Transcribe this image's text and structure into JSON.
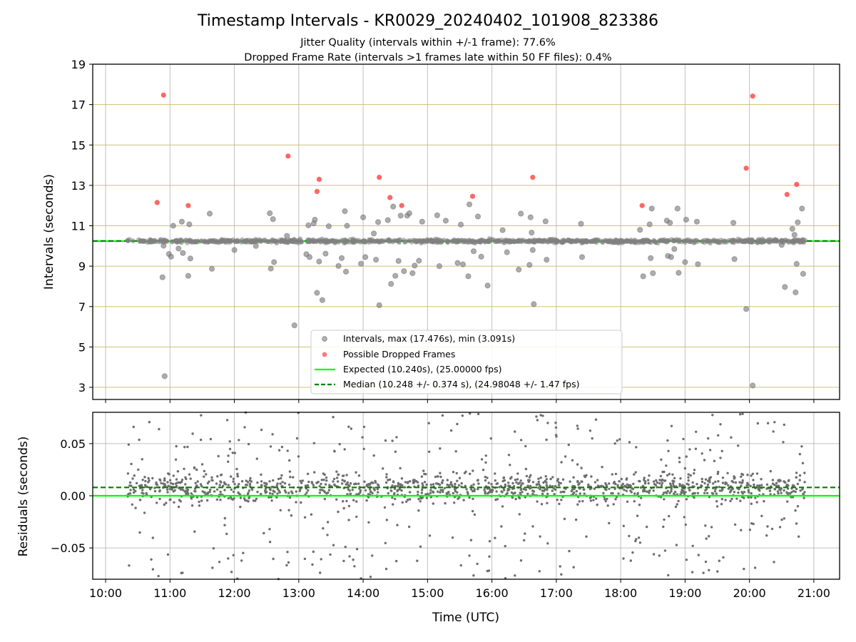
{
  "chart_data": [
    {
      "type": "scatter",
      "title": "Timestamp Intervals - KR0029_20240402_101908_823386",
      "subtitle_lines": [
        "Jitter Quality (intervals within +/-1 frame): 77.6%",
        "Dropped Frame Rate (intervals >1 frames late within 50 FF files): 0.4%"
      ],
      "xlabel": "",
      "ylabel": "Intervals (seconds)",
      "xlim": [
        "09:48",
        "21:24"
      ],
      "ylim": [
        2.4,
        19
      ],
      "yticks": [
        "3",
        "5",
        "7",
        "9",
        "11",
        "13",
        "15",
        "17",
        "19"
      ],
      "ytick_values": [
        3,
        5,
        7,
        9,
        11,
        13,
        15,
        17,
        19
      ],
      "grid": true,
      "legend_position": "lower-center",
      "expected_interval": 10.24,
      "median_interval": 10.248,
      "series": [
        {
          "name": "Intervals, max (17.476s), min (3.091s)",
          "color": "#808080",
          "band_center": 10.24,
          "points": [
            [
              "10:53",
              8.45
            ],
            [
              "10:54",
              10.01
            ],
            [
              "10:55",
              3.55
            ],
            [
              "10:59",
              9.6
            ],
            [
              "11:01",
              9.47
            ],
            [
              "11:03",
              11.0
            ],
            [
              "11:08",
              9.87
            ],
            [
              "11:11",
              11.2
            ],
            [
              "11:12",
              9.65
            ],
            [
              "11:17",
              8.52
            ],
            [
              "11:18",
              11.07
            ],
            [
              "11:19",
              9.38
            ],
            [
              "11:37",
              11.6
            ],
            [
              "11:39",
              8.87
            ],
            [
              "12:00",
              9.8
            ],
            [
              "12:20",
              10.0
            ],
            [
              "12:33",
              11.62
            ],
            [
              "12:36",
              11.33
            ],
            [
              "12:34",
              8.88
            ],
            [
              "12:37",
              9.2
            ],
            [
              "12:49",
              10.5
            ],
            [
              "12:56",
              6.07
            ],
            [
              "13:07",
              9.59
            ],
            [
              "13:09",
              11.02
            ],
            [
              "13:10",
              9.45
            ],
            [
              "13:14",
              11.12
            ],
            [
              "13:15",
              11.3
            ],
            [
              "13:17",
              7.68
            ],
            [
              "13:19",
              9.23
            ],
            [
              "13:22",
              7.32
            ],
            [
              "13:25",
              9.62
            ],
            [
              "13:28",
              10.98
            ],
            [
              "13:37",
              9.01
            ],
            [
              "13:40",
              9.4
            ],
            [
              "13:43",
              11.72
            ],
            [
              "13:44",
              8.73
            ],
            [
              "13:45",
              11.0
            ],
            [
              "13:58",
              9.12
            ],
            [
              "14:00",
              11.42
            ],
            [
              "14:02",
              9.45
            ],
            [
              "14:10",
              10.62
            ],
            [
              "14:12",
              9.32
            ],
            [
              "14:14",
              11.18
            ],
            [
              "14:15",
              7.07
            ],
            [
              "14:23",
              11.28
            ],
            [
              "14:26",
              8.12
            ],
            [
              "14:28",
              11.95
            ],
            [
              "14:30",
              8.52
            ],
            [
              "14:33",
              9.26
            ],
            [
              "14:35",
              11.5
            ],
            [
              "14:38",
              8.75
            ],
            [
              "14:41",
              11.5
            ],
            [
              "14:43",
              11.62
            ],
            [
              "14:46",
              8.65
            ],
            [
              "14:48",
              9.03
            ],
            [
              "14:52",
              9.27
            ],
            [
              "14:55",
              11.2
            ],
            [
              "15:09",
              11.52
            ],
            [
              "15:11",
              9.0
            ],
            [
              "15:17",
              11.25
            ],
            [
              "15:28",
              9.16
            ],
            [
              "15:31",
              11.06
            ],
            [
              "15:33",
              9.09
            ],
            [
              "15:38",
              8.5
            ],
            [
              "15:39",
              12.06
            ],
            [
              "15:43",
              9.74
            ],
            [
              "15:47",
              11.46
            ],
            [
              "15:50",
              9.47
            ],
            [
              "15:56",
              8.04
            ],
            [
              "16:10",
              10.78
            ],
            [
              "16:14",
              9.69
            ],
            [
              "16:25",
              8.83
            ],
            [
              "16:27",
              11.6
            ],
            [
              "16:35",
              9.06
            ],
            [
              "16:36",
              11.42
            ],
            [
              "16:37",
              10.66
            ],
            [
              "16:38",
              9.8
            ],
            [
              "16:39",
              7.12
            ],
            [
              "16:50",
              11.22
            ],
            [
              "16:51",
              9.32
            ],
            [
              "17:23",
              11.1
            ],
            [
              "17:24",
              9.45
            ],
            [
              "18:18",
              10.8
            ],
            [
              "18:21",
              8.5
            ],
            [
              "18:27",
              11.07
            ],
            [
              "18:28",
              9.4
            ],
            [
              "18:29",
              11.85
            ],
            [
              "18:30",
              8.65
            ],
            [
              "18:43",
              11.25
            ],
            [
              "18:44",
              9.51
            ],
            [
              "18:46",
              11.15
            ],
            [
              "18:47",
              9.45
            ],
            [
              "18:50",
              9.85
            ],
            [
              "18:53",
              11.85
            ],
            [
              "18:54",
              8.67
            ],
            [
              "19:00",
              9.2
            ],
            [
              "19:01",
              11.3
            ],
            [
              "19:11",
              11.2
            ],
            [
              "19:12",
              9.1
            ],
            [
              "19:45",
              11.15
            ],
            [
              "19:46",
              9.35
            ],
            [
              "19:57",
              6.88
            ],
            [
              "20:03",
              3.09
            ],
            [
              "20:30",
              10.05
            ],
            [
              "20:33",
              7.97
            ],
            [
              "20:40",
              10.85
            ],
            [
              "20:42",
              10.55
            ],
            [
              "20:43",
              7.7
            ],
            [
              "20:44",
              9.11
            ],
            [
              "20:45",
              11.17
            ],
            [
              "20:49",
              11.85
            ],
            [
              "20:50",
              8.62
            ]
          ]
        },
        {
          "name": "Possible Dropped Frames",
          "color": "#ff4040",
          "points": [
            [
              "10:48",
              12.15
            ],
            [
              "10:54",
              17.47
            ],
            [
              "11:17",
              12.0
            ],
            [
              "12:50",
              14.45
            ],
            [
              "13:17",
              12.7
            ],
            [
              "13:19",
              13.3
            ],
            [
              "14:15",
              13.4
            ],
            [
              "14:25",
              12.4
            ],
            [
              "14:36",
              12.0
            ],
            [
              "15:42",
              12.46
            ],
            [
              "16:38",
              13.4
            ],
            [
              "18:20",
              12.0
            ],
            [
              "19:57",
              13.85
            ],
            [
              "20:03",
              17.42
            ],
            [
              "20:35",
              12.55
            ],
            [
              "20:44",
              13.05
            ]
          ]
        }
      ],
      "reference_lines": [
        {
          "name": "Expected (10.240s), (25.00000 fps)",
          "y": 10.24,
          "color": "#00ff00",
          "style": "solid"
        },
        {
          "name": "Median (10.248 +/- 0.374 s), (24.98048 +/- 1.47 fps)",
          "y": 10.248,
          "color": "#008000",
          "style": "dashed"
        }
      ]
    },
    {
      "type": "scatter",
      "xlabel": "Time (UTC)",
      "ylabel": "Residuals (seconds)",
      "xlim": [
        "09:48",
        "21:24"
      ],
      "ylim": [
        -0.08,
        0.08
      ],
      "xticks": [
        "10:00",
        "11:00",
        "12:00",
        "13:00",
        "14:00",
        "15:00",
        "16:00",
        "17:00",
        "18:00",
        "19:00",
        "20:00",
        "21:00"
      ],
      "yticks": [
        "−0.05",
        "0.00",
        "0.05"
      ],
      "ytick_values": [
        -0.05,
        0.0,
        0.05
      ],
      "grid": true,
      "time_range": [
        "10:20",
        "20:52"
      ],
      "residual_center": 0.008,
      "residual_band": 0.012,
      "outlier_fraction": 0.25,
      "series": [
        {
          "name": "",
          "color": "#808080"
        }
      ],
      "reference_lines": [
        {
          "name": "",
          "y": 0.0,
          "color": "#00ff00",
          "style": "solid"
        },
        {
          "name": "",
          "y": 0.008,
          "color": "#008000",
          "style": "dashed"
        }
      ]
    }
  ]
}
